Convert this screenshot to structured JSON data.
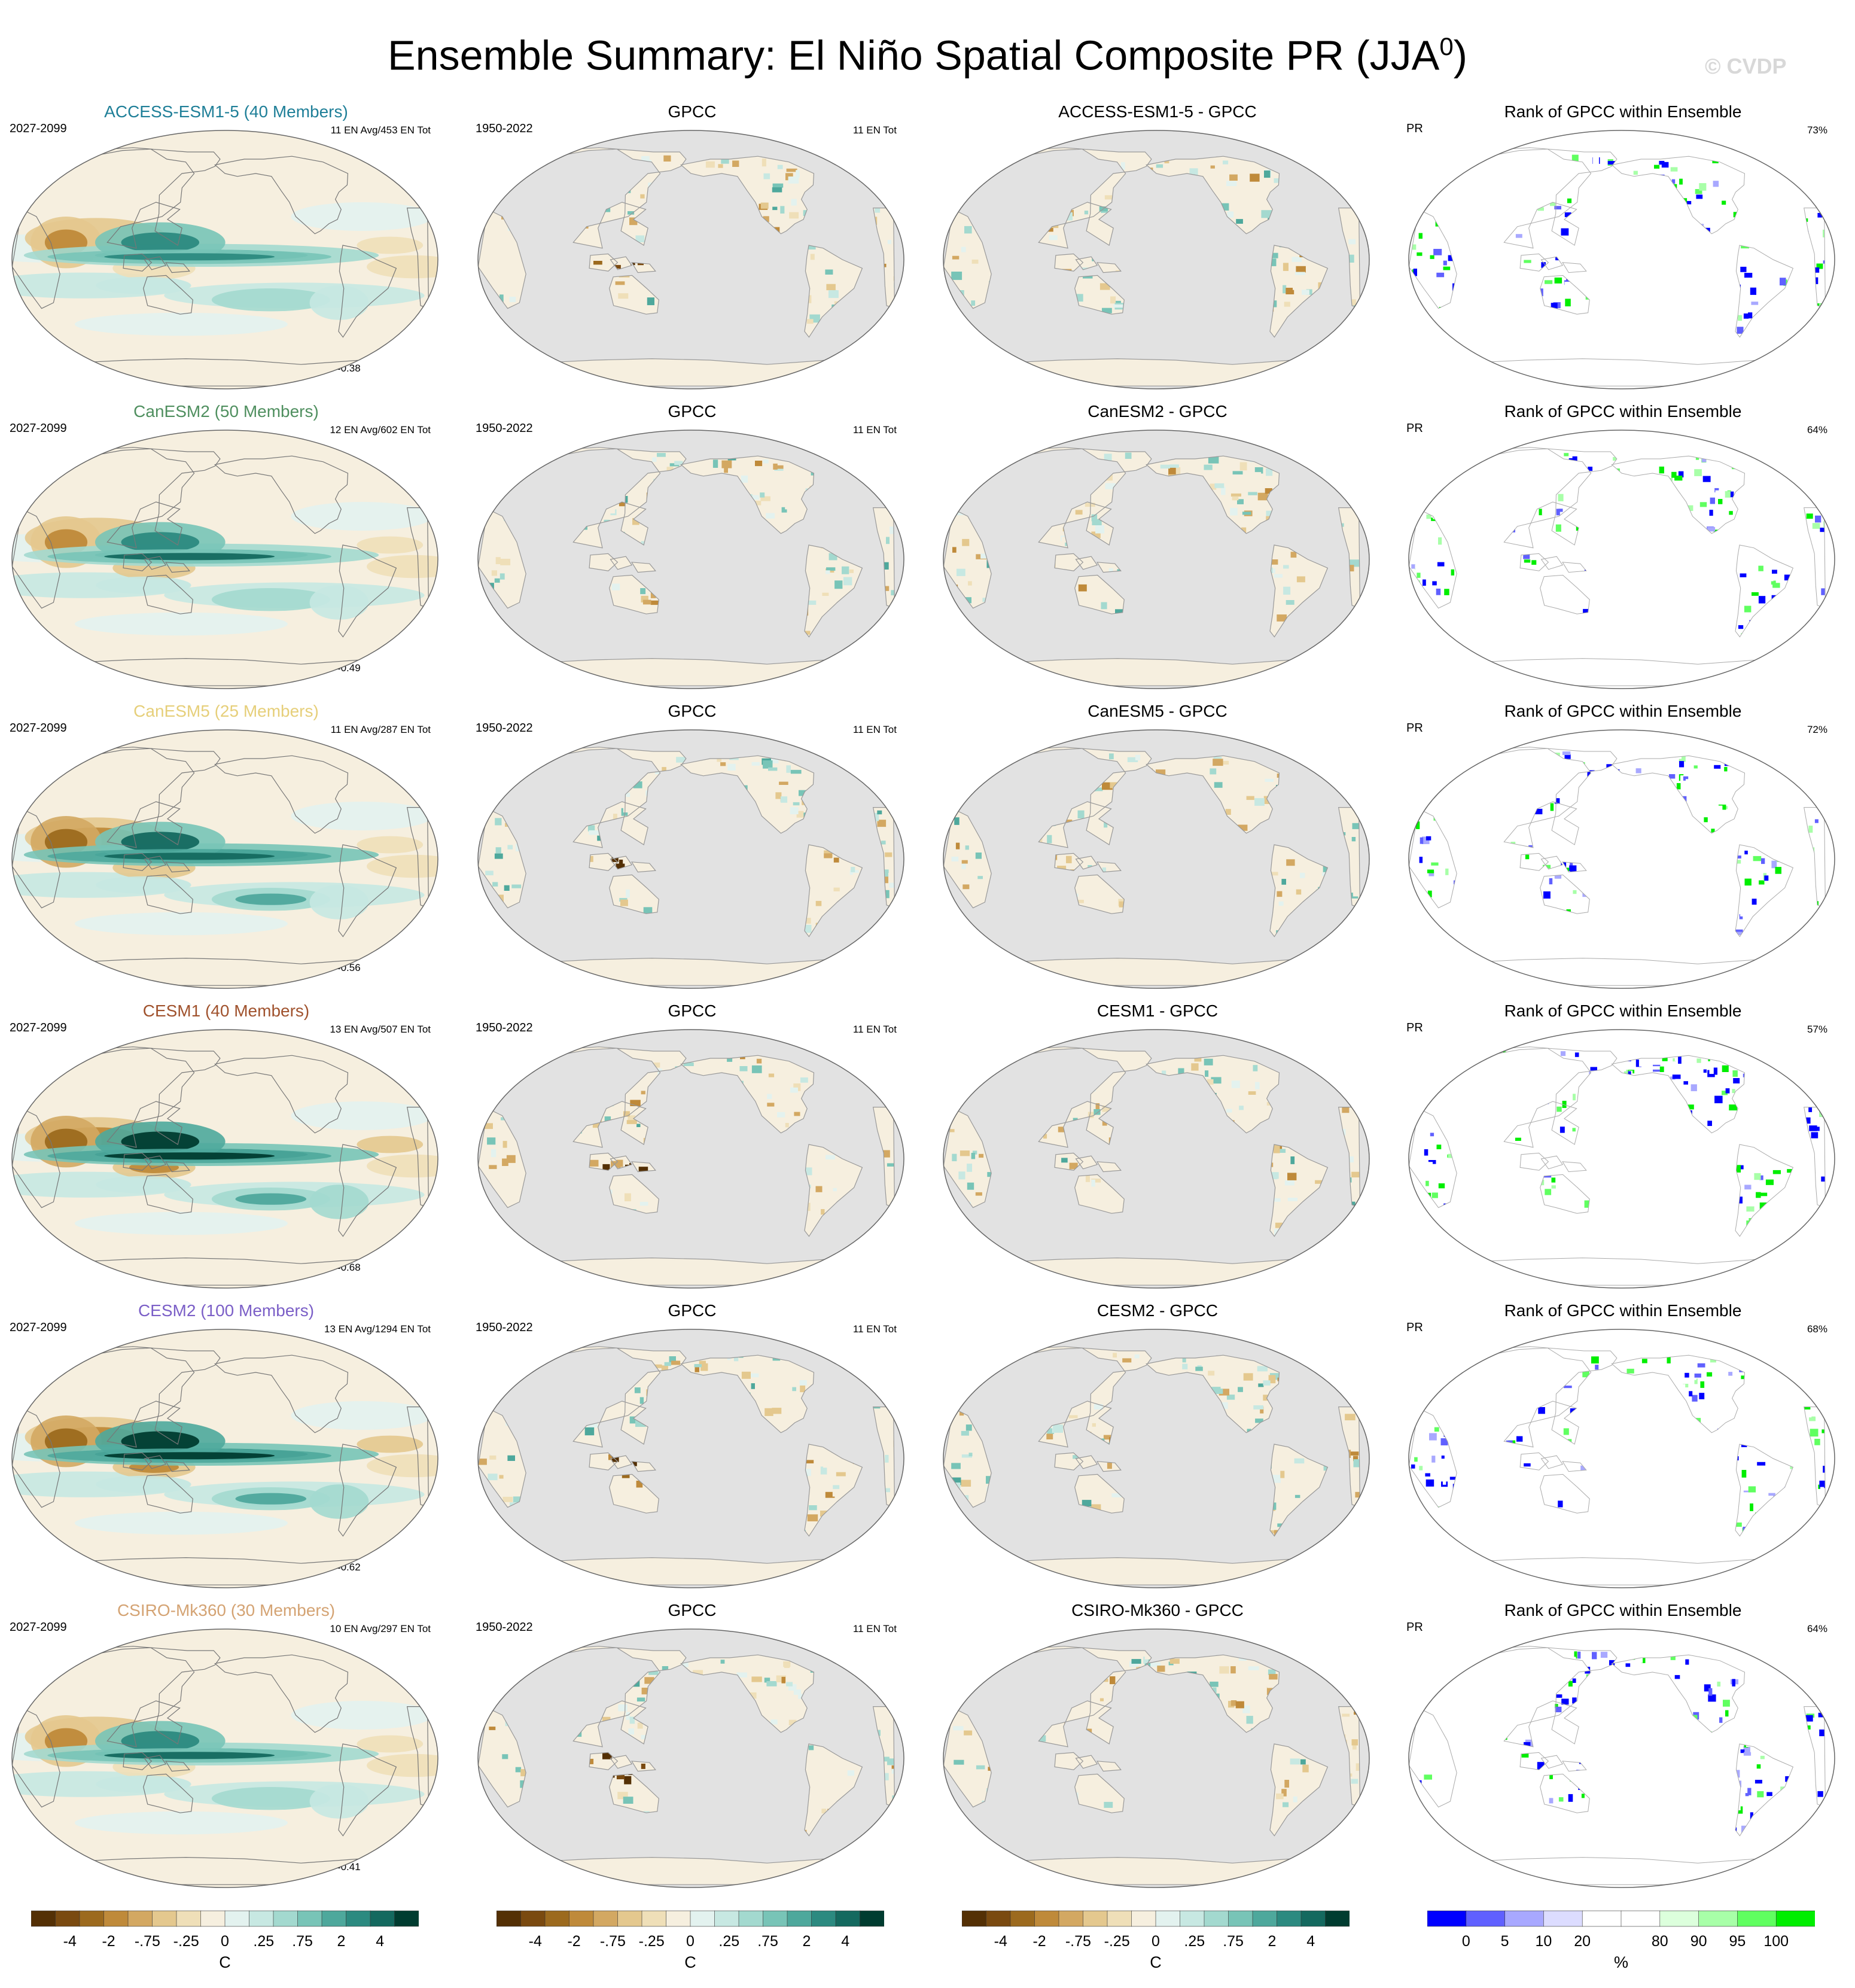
{
  "title": "Ensemble Summary: El Niño Spatial Composite PR (JJA",
  "title_sup": "0",
  "title_close": ")",
  "watermark": "© CVDP",
  "colors": {
    "brown_dark": "#543005",
    "teal_dark": "#003c30",
    "rank_blue": "#0000ff",
    "rank_green": "#00ee00",
    "ocean_gray": "#e2e2e2",
    "land_line": "#888888"
  },
  "chart_data": [
    {
      "type": "heatmap",
      "row": 0,
      "col": 0,
      "title": "ACCESS-ESM1-5 (40 Members)",
      "title_color": "#1f7f98",
      "left_label": "2027-2099",
      "right_label": "11 EN Avg/453 EN Tot",
      "r_label": "r=0.38",
      "variant": "model",
      "strength": 0.7
    },
    {
      "type": "heatmap",
      "row": 0,
      "col": 1,
      "title": "GPCC",
      "left_label": "1950-2022",
      "right_label": "11 EN Tot",
      "variant": "obs"
    },
    {
      "type": "heatmap",
      "row": 0,
      "col": 2,
      "title": "ACCESS-ESM1-5 - GPCC",
      "variant": "diff"
    },
    {
      "type": "heatmap",
      "row": 0,
      "col": 3,
      "title": "Rank of GPCC within Ensemble",
      "left_label": "PR",
      "right_label": "73%",
      "variant": "rank"
    },
    {
      "type": "heatmap",
      "row": 1,
      "col": 0,
      "title": "CanESM2 (50 Members)",
      "title_color": "#4f8f5f",
      "left_label": "2027-2099",
      "right_label": "12 EN Avg/602 EN Tot",
      "r_label": "r=0.49",
      "variant": "model",
      "strength": 0.8
    },
    {
      "type": "heatmap",
      "row": 1,
      "col": 1,
      "title": "GPCC",
      "left_label": "1950-2022",
      "right_label": "11 EN Tot",
      "variant": "obs"
    },
    {
      "type": "heatmap",
      "row": 1,
      "col": 2,
      "title": "CanESM2 - GPCC",
      "variant": "diff"
    },
    {
      "type": "heatmap",
      "row": 1,
      "col": 3,
      "title": "Rank of GPCC within Ensemble",
      "left_label": "PR",
      "right_label": "64%",
      "variant": "rank"
    },
    {
      "type": "heatmap",
      "row": 2,
      "col": 0,
      "title": "CanESM5 (25 Members)",
      "title_color": "#e6cf7a",
      "left_label": "2027-2099",
      "right_label": "11 EN Avg/287 EN Tot",
      "r_label": "r=0.56",
      "variant": "model",
      "strength": 0.85
    },
    {
      "type": "heatmap",
      "row": 2,
      "col": 1,
      "title": "GPCC",
      "left_label": "1950-2022",
      "right_label": "11 EN Tot",
      "variant": "obs"
    },
    {
      "type": "heatmap",
      "row": 2,
      "col": 2,
      "title": "CanESM5 - GPCC",
      "variant": "diff"
    },
    {
      "type": "heatmap",
      "row": 2,
      "col": 3,
      "title": "Rank of GPCC within Ensemble",
      "left_label": "PR",
      "right_label": "72%",
      "variant": "rank"
    },
    {
      "type": "heatmap",
      "row": 3,
      "col": 0,
      "title": "CESM1 (40 Members)",
      "title_color": "#a0522d",
      "left_label": "2027-2099",
      "right_label": "13 EN Avg/507 EN Tot",
      "r_label": "r=0.68",
      "variant": "model",
      "strength": 1.0
    },
    {
      "type": "heatmap",
      "row": 3,
      "col": 1,
      "title": "GPCC",
      "left_label": "1950-2022",
      "right_label": "11 EN Tot",
      "variant": "obs"
    },
    {
      "type": "heatmap",
      "row": 3,
      "col": 2,
      "title": "CESM1 - GPCC",
      "variant": "diff"
    },
    {
      "type": "heatmap",
      "row": 3,
      "col": 3,
      "title": "Rank of GPCC within Ensemble",
      "left_label": "PR",
      "right_label": "57%",
      "variant": "rank"
    },
    {
      "type": "heatmap",
      "row": 4,
      "col": 0,
      "title": "CESM2 (100 Members)",
      "title_color": "#7b5fc7",
      "left_label": "2027-2099",
      "right_label": "13 EN Avg/1294 EN Tot",
      "r_label": "r=0.62",
      "variant": "model",
      "strength": 1.0
    },
    {
      "type": "heatmap",
      "row": 4,
      "col": 1,
      "title": "GPCC",
      "left_label": "1950-2022",
      "right_label": "11 EN Tot",
      "variant": "obs"
    },
    {
      "type": "heatmap",
      "row": 4,
      "col": 2,
      "title": "CESM2 - GPCC",
      "variant": "diff"
    },
    {
      "type": "heatmap",
      "row": 4,
      "col": 3,
      "title": "Rank of GPCC within Ensemble",
      "left_label": "PR",
      "right_label": "68%",
      "variant": "rank"
    },
    {
      "type": "heatmap",
      "row": 5,
      "col": 0,
      "title": "CSIRO-Mk360 (30 Members)",
      "title_color": "#d4a373",
      "left_label": "2027-2099",
      "right_label": "10 EN Avg/297 EN Tot",
      "r_label": "r=0.41",
      "variant": "model",
      "strength": 0.75
    },
    {
      "type": "heatmap",
      "row": 5,
      "col": 1,
      "title": "GPCC",
      "left_label": "1950-2022",
      "right_label": "11 EN Tot",
      "variant": "obs"
    },
    {
      "type": "heatmap",
      "row": 5,
      "col": 2,
      "title": "CSIRO-Mk360 - GPCC",
      "variant": "diff"
    },
    {
      "type": "heatmap",
      "row": 5,
      "col": 3,
      "title": "Rank of GPCC within Ensemble",
      "left_label": "PR",
      "right_label": "64%",
      "variant": "rank"
    }
  ],
  "colorbars": [
    {
      "units": "C",
      "colors": [
        "#543005",
        "#7a4a10",
        "#9c6a1e",
        "#bf8a3a",
        "#d3a862",
        "#e4c88e",
        "#efdfb8",
        "#f6efdf",
        "#e3f2ef",
        "#c7e8e2",
        "#a3d9cf",
        "#78c4b7",
        "#4ea89c",
        "#2c8a80",
        "#14695f",
        "#003c30"
      ],
      "labels": [
        "-4",
        "-2",
        "-.75",
        "-.25",
        "0",
        ".25",
        ".75",
        "2",
        "4"
      ],
      "label_at": [
        2,
        4,
        6,
        8,
        10,
        12,
        14,
        16,
        18
      ]
    },
    {
      "units": "C",
      "colors": [
        "#543005",
        "#7a4a10",
        "#9c6a1e",
        "#bf8a3a",
        "#d3a862",
        "#e4c88e",
        "#efdfb8",
        "#f6efdf",
        "#e3f2ef",
        "#c7e8e2",
        "#a3d9cf",
        "#78c4b7",
        "#4ea89c",
        "#2c8a80",
        "#14695f",
        "#003c30"
      ],
      "labels": [
        "-4",
        "-2",
        "-.75",
        "-.25",
        "0",
        ".25",
        ".75",
        "2",
        "4"
      ],
      "label_at": [
        2,
        4,
        6,
        8,
        10,
        12,
        14,
        16,
        18
      ]
    },
    {
      "units": "C",
      "colors": [
        "#543005",
        "#7a4a10",
        "#9c6a1e",
        "#bf8a3a",
        "#d3a862",
        "#e4c88e",
        "#efdfb8",
        "#f6efdf",
        "#e3f2ef",
        "#c7e8e2",
        "#a3d9cf",
        "#78c4b7",
        "#4ea89c",
        "#2c8a80",
        "#14695f",
        "#003c30"
      ],
      "labels": [
        "-4",
        "-2",
        "-.75",
        "-.25",
        "0",
        ".25",
        ".75",
        "2",
        "4"
      ],
      "label_at": [
        2,
        4,
        6,
        8,
        10,
        12,
        14,
        16,
        18
      ]
    },
    {
      "units": "%",
      "colors": [
        "#0000ff",
        "#6060ff",
        "#a8a8ff",
        "#dcdcff",
        "#ffffff",
        "#ffffff",
        "#dcffdc",
        "#a8ffa8",
        "#60ff60",
        "#00ee00"
      ],
      "labels": [
        "0",
        "5",
        "10",
        "20",
        "80",
        "90",
        "95",
        "100"
      ],
      "label_at": [
        1,
        2,
        3,
        4,
        6,
        7,
        8,
        9
      ]
    }
  ]
}
